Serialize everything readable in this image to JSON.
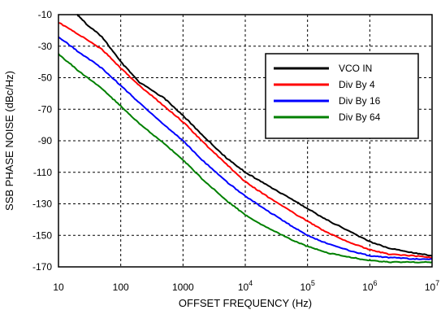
{
  "chart_data": {
    "type": "line",
    "xlabel": "OFFSET FREQUENCY (Hz)",
    "ylabel": "SSB PHASE NOISE (dBc/Hz)",
    "x_scale": "log",
    "xlim": [
      10,
      10000000
    ],
    "ylim": [
      -170,
      -10
    ],
    "grid": true,
    "legend_position": "top-right",
    "x_ticks": [
      {
        "value": 10,
        "base": "10",
        "exp": ""
      },
      {
        "value": 100,
        "base": "100",
        "exp": ""
      },
      {
        "value": 1000,
        "base": "1000",
        "exp": ""
      },
      {
        "value": 10000,
        "base": "10",
        "exp": "4"
      },
      {
        "value": 100000,
        "base": "10",
        "exp": "5"
      },
      {
        "value": 1000000,
        "base": "10",
        "exp": "6"
      },
      {
        "value": 10000000,
        "base": "10",
        "exp": "7"
      }
    ],
    "y_ticks": [
      -10,
      -30,
      -50,
      -70,
      -90,
      -110,
      -130,
      -150,
      -170
    ],
    "series": [
      {
        "name": "VCO IN",
        "color": "#000000",
        "points": [
          [
            20,
            -10
          ],
          [
            30,
            -17
          ],
          [
            50,
            -24
          ],
          [
            100,
            -40
          ],
          [
            200,
            -53
          ],
          [
            500,
            -63
          ],
          [
            1000,
            -74
          ],
          [
            2000,
            -86
          ],
          [
            5000,
            -101
          ],
          [
            10000,
            -110
          ],
          [
            20000,
            -117
          ],
          [
            50000,
            -126
          ],
          [
            100000,
            -133
          ],
          [
            200000,
            -140
          ],
          [
            500000,
            -148
          ],
          [
            1000000,
            -154
          ],
          [
            2000000,
            -158
          ],
          [
            5000000,
            -161
          ],
          [
            10000000,
            -163
          ]
        ]
      },
      {
        "name": "Div By 4",
        "color": "#ff0000",
        "points": [
          [
            10,
            -15
          ],
          [
            20,
            -22
          ],
          [
            50,
            -32
          ],
          [
            100,
            -44
          ],
          [
            200,
            -55
          ],
          [
            500,
            -68
          ],
          [
            1000,
            -78
          ],
          [
            2000,
            -90
          ],
          [
            5000,
            -105
          ],
          [
            10000,
            -116
          ],
          [
            20000,
            -124
          ],
          [
            50000,
            -134
          ],
          [
            100000,
            -141
          ],
          [
            200000,
            -148
          ],
          [
            500000,
            -155
          ],
          [
            1000000,
            -159
          ],
          [
            2000000,
            -162
          ],
          [
            5000000,
            -163
          ],
          [
            10000000,
            -164
          ]
        ]
      },
      {
        "name": "Div By 16",
        "color": "#0000ff",
        "points": [
          [
            10,
            -24
          ],
          [
            20,
            -33
          ],
          [
            50,
            -44
          ],
          [
            100,
            -55
          ],
          [
            200,
            -66
          ],
          [
            500,
            -80
          ],
          [
            1000,
            -90
          ],
          [
            2000,
            -102
          ],
          [
            5000,
            -116
          ],
          [
            10000,
            -125
          ],
          [
            20000,
            -133
          ],
          [
            50000,
            -143
          ],
          [
            100000,
            -150
          ],
          [
            200000,
            -155
          ],
          [
            500000,
            -160
          ],
          [
            1000000,
            -163
          ],
          [
            2000000,
            -164
          ],
          [
            5000000,
            -165
          ],
          [
            10000000,
            -165
          ]
        ]
      },
      {
        "name": "Div By 64",
        "color": "#008000",
        "points": [
          [
            10,
            -35
          ],
          [
            20,
            -45
          ],
          [
            50,
            -57
          ],
          [
            100,
            -68
          ],
          [
            200,
            -79
          ],
          [
            500,
            -92
          ],
          [
            1000,
            -102
          ],
          [
            2000,
            -114
          ],
          [
            5000,
            -128
          ],
          [
            10000,
            -137
          ],
          [
            20000,
            -144
          ],
          [
            50000,
            -152
          ],
          [
            100000,
            -157
          ],
          [
            200000,
            -161
          ],
          [
            500000,
            -164
          ],
          [
            1000000,
            -166
          ],
          [
            2000000,
            -167
          ],
          [
            5000000,
            -167
          ],
          [
            10000000,
            -167
          ]
        ]
      }
    ]
  }
}
